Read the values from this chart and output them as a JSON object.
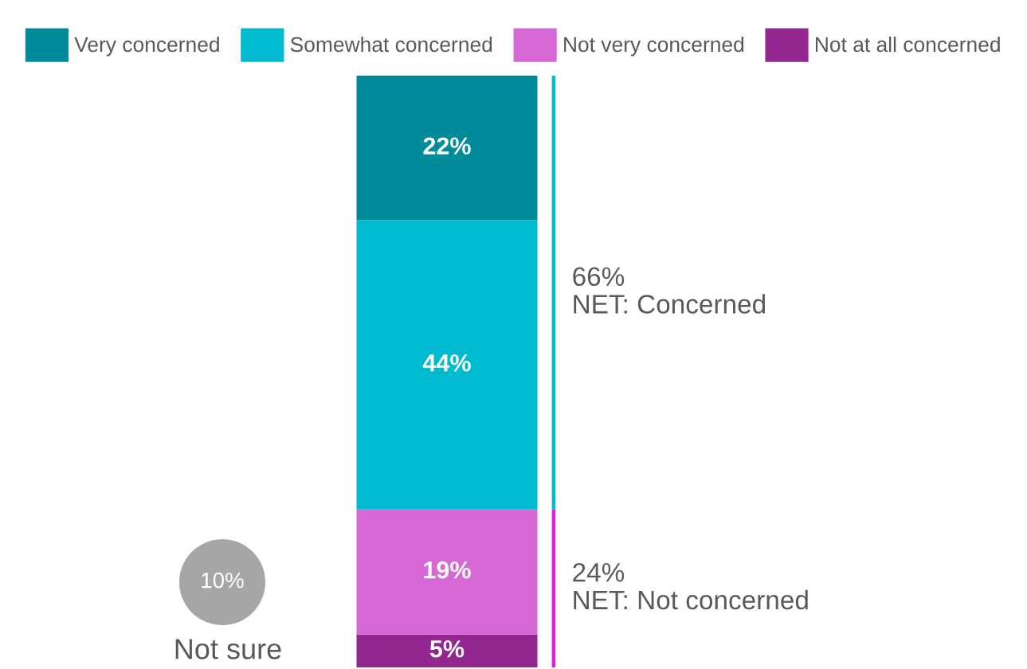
{
  "chart_data": {
    "type": "bar",
    "stacked": true,
    "categories": [
      null
    ],
    "series": [
      {
        "name": "Not at all concerned",
        "color": "#92278f",
        "values": [
          5
        ],
        "value_labels": [
          "5%"
        ]
      },
      {
        "name": "Not very concerned",
        "color": "#d668d6",
        "values": [
          19
        ],
        "value_labels": [
          "19%"
        ]
      },
      {
        "name": "Somewhat concerned",
        "color": "#00bad0",
        "values": [
          44
        ],
        "value_labels": [
          "44%"
        ]
      },
      {
        "name": "Very concerned",
        "color": "#008b9b",
        "values": [
          22
        ],
        "value_labels": [
          "22%"
        ]
      }
    ],
    "legend": "top",
    "annotations": [
      "10%",
      "Not sure",
      "24%\nNET: Not concerned",
      "66%\nNET: Concerned"
    ]
  }
}
